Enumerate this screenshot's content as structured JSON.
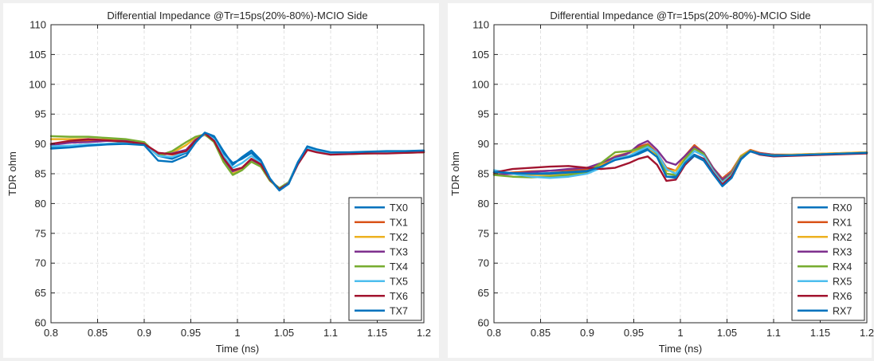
{
  "chart_data": [
    {
      "type": "line",
      "title": "Differential Impedance @Tr=15ps(20%-80%)-MCIO Side",
      "xlabel": "Time (ns)",
      "ylabel": "TDR ohm",
      "xlim": [
        0.8,
        1.2
      ],
      "ylim": [
        60,
        110
      ],
      "xticks": [
        "0.8",
        "0.85",
        "0.9",
        "0.95",
        "1",
        "1.05",
        "1.1",
        "1.15",
        "1.2"
      ],
      "yticks": [
        "60",
        "65",
        "70",
        "75",
        "80",
        "85",
        "90",
        "95",
        "100",
        "105",
        "110"
      ],
      "grid": true,
      "legend_position": "bottom-right",
      "x": [
        0.8,
        0.82,
        0.84,
        0.86,
        0.88,
        0.9,
        0.915,
        0.93,
        0.945,
        0.955,
        0.965,
        0.975,
        0.985,
        0.995,
        1.005,
        1.015,
        1.025,
        1.035,
        1.045,
        1.055,
        1.065,
        1.075,
        1.085,
        1.1,
        1.12,
        1.14,
        1.16,
        1.18,
        1.2
      ],
      "series": [
        {
          "name": "TX0",
          "color": "#0072bd",
          "values": [
            89.5,
            89.5,
            89.8,
            90.0,
            90.2,
            90.2,
            88.0,
            87.5,
            88.5,
            90.5,
            91.8,
            91.0,
            88.5,
            86.8,
            87.5,
            88.5,
            87.0,
            84.0,
            82.2,
            83.5,
            87.0,
            89.5,
            89.0,
            88.5,
            88.5,
            88.6,
            88.6,
            88.7,
            88.8
          ]
        },
        {
          "name": "TX1",
          "color": "#d95319",
          "values": [
            90.0,
            90.3,
            90.5,
            90.5,
            90.4,
            90.0,
            88.5,
            88.2,
            88.8,
            90.5,
            91.8,
            90.5,
            87.5,
            85.5,
            86.0,
            87.5,
            86.5,
            84.0,
            82.4,
            83.5,
            86.8,
            89.2,
            88.8,
            88.3,
            88.4,
            88.5,
            88.5,
            88.6,
            88.6
          ]
        },
        {
          "name": "TX2",
          "color": "#edb120",
          "values": [
            90.8,
            90.8,
            90.8,
            90.7,
            90.5,
            90.0,
            88.0,
            88.5,
            89.8,
            91.0,
            91.5,
            90.5,
            87.0,
            85.0,
            85.8,
            87.2,
            86.3,
            83.8,
            82.5,
            83.5,
            86.8,
            89.0,
            88.8,
            88.3,
            88.4,
            88.4,
            88.5,
            88.6,
            88.6
          ]
        },
        {
          "name": "TX3",
          "color": "#7e2f8e",
          "values": [
            89.8,
            90.2,
            90.3,
            90.5,
            90.5,
            90.2,
            88.2,
            88.4,
            89.0,
            90.7,
            91.6,
            90.4,
            87.5,
            85.4,
            86.0,
            87.4,
            86.5,
            84.0,
            82.4,
            83.5,
            86.8,
            89.0,
            88.7,
            88.3,
            88.3,
            88.5,
            88.5,
            88.6,
            88.7
          ]
        },
        {
          "name": "TX4",
          "color": "#77ac30",
          "values": [
            91.3,
            91.2,
            91.2,
            91.0,
            90.8,
            90.3,
            88.0,
            88.8,
            90.3,
            91.2,
            91.6,
            90.3,
            87.0,
            84.8,
            85.6,
            87.0,
            86.2,
            83.8,
            82.6,
            83.6,
            86.8,
            89.0,
            88.8,
            88.3,
            88.3,
            88.4,
            88.5,
            88.5,
            88.6
          ]
        },
        {
          "name": "TX5",
          "color": "#4dbeee",
          "values": [
            89.6,
            89.7,
            89.9,
            90.0,
            90.1,
            90.0,
            88.0,
            87.8,
            88.7,
            90.5,
            91.7,
            90.8,
            88.0,
            86.0,
            86.8,
            88.0,
            86.8,
            84.0,
            82.3,
            83.5,
            86.9,
            89.3,
            88.9,
            88.4,
            88.5,
            88.6,
            88.6,
            88.7,
            88.8
          ]
        },
        {
          "name": "TX6",
          "color": "#a2142f",
          "values": [
            90.0,
            90.5,
            90.8,
            90.6,
            90.4,
            90.0,
            88.5,
            88.3,
            88.8,
            90.5,
            91.8,
            90.5,
            87.6,
            85.6,
            86.0,
            87.5,
            86.6,
            84.0,
            82.4,
            83.4,
            86.6,
            89.0,
            88.6,
            88.2,
            88.3,
            88.4,
            88.4,
            88.5,
            88.6
          ]
        },
        {
          "name": "TX7",
          "color": "#0072bd",
          "values": [
            89.2,
            89.4,
            89.7,
            89.9,
            90.0,
            89.8,
            87.2,
            87.0,
            88.0,
            90.2,
            91.9,
            91.3,
            88.8,
            86.5,
            87.8,
            88.9,
            87.3,
            84.2,
            82.2,
            83.3,
            86.9,
            89.6,
            89.1,
            88.6,
            88.6,
            88.7,
            88.8,
            88.8,
            88.9
          ]
        }
      ]
    },
    {
      "type": "line",
      "title": "Differential Impedance @Tr=15ps(20%-80%)-MCIO Side",
      "xlabel": "Time (ns)",
      "ylabel": "TDR ohm",
      "xlim": [
        0.8,
        1.2
      ],
      "ylim": [
        60,
        110
      ],
      "xticks": [
        "0.8",
        "0.85",
        "0.9",
        "0.95",
        "1",
        "1.05",
        "1.1",
        "1.15",
        "1.2"
      ],
      "yticks": [
        "60",
        "65",
        "70",
        "75",
        "80",
        "85",
        "90",
        "95",
        "100",
        "105",
        "110"
      ],
      "grid": true,
      "legend_position": "bottom-right",
      "x": [
        0.8,
        0.82,
        0.84,
        0.86,
        0.88,
        0.9,
        0.915,
        0.93,
        0.945,
        0.955,
        0.965,
        0.975,
        0.985,
        0.995,
        1.005,
        1.015,
        1.025,
        1.035,
        1.045,
        1.055,
        1.065,
        1.075,
        1.085,
        1.1,
        1.12,
        1.14,
        1.16,
        1.18,
        1.2
      ],
      "series": [
        {
          "name": "RX0",
          "color": "#0072bd",
          "values": [
            85.0,
            85.0,
            85.0,
            85.1,
            85.3,
            85.5,
            86.8,
            87.8,
            88.0,
            88.5,
            89.3,
            88.0,
            84.5,
            84.5,
            86.5,
            88.0,
            87.2,
            85.0,
            83.0,
            84.5,
            87.5,
            88.8,
            88.3,
            88.0,
            88.1,
            88.2,
            88.3,
            88.4,
            88.5
          ]
        },
        {
          "name": "RX1",
          "color": "#d95319",
          "values": [
            85.0,
            85.2,
            85.4,
            85.5,
            85.6,
            85.8,
            86.5,
            87.5,
            88.5,
            89.5,
            90.0,
            88.5,
            86.0,
            85.5,
            88.0,
            89.8,
            88.5,
            86.0,
            84.2,
            85.5,
            88.0,
            89.0,
            88.5,
            88.2,
            88.2,
            88.3,
            88.4,
            88.5,
            88.6
          ]
        },
        {
          "name": "RX2",
          "color": "#edb120",
          "values": [
            85.2,
            85.0,
            84.8,
            84.8,
            85.0,
            85.3,
            86.5,
            88.0,
            88.5,
            89.0,
            89.5,
            88.0,
            85.5,
            85.5,
            87.8,
            89.5,
            88.5,
            86.0,
            84.0,
            85.3,
            88.0,
            88.9,
            88.4,
            88.2,
            88.2,
            88.3,
            88.4,
            88.5,
            88.6
          ]
        },
        {
          "name": "RX3",
          "color": "#7e2f8e",
          "values": [
            84.8,
            85.0,
            85.3,
            85.5,
            85.8,
            86.0,
            86.8,
            87.8,
            88.5,
            89.8,
            90.5,
            89.0,
            87.0,
            86.5,
            88.0,
            89.5,
            88.5,
            86.0,
            84.0,
            85.2,
            87.8,
            88.8,
            88.4,
            88.2,
            88.1,
            88.2,
            88.3,
            88.4,
            88.5
          ]
        },
        {
          "name": "RX4",
          "color": "#77ac30",
          "values": [
            84.8,
            84.5,
            84.4,
            84.5,
            84.8,
            85.2,
            86.8,
            88.6,
            88.8,
            89.2,
            89.8,
            88.3,
            85.0,
            84.8,
            87.5,
            89.2,
            88.3,
            85.6,
            83.6,
            85.0,
            87.8,
            88.8,
            88.3,
            88.1,
            88.1,
            88.2,
            88.3,
            88.4,
            88.5
          ]
        },
        {
          "name": "RX5",
          "color": "#4dbeee",
          "values": [
            85.6,
            85.0,
            84.5,
            84.3,
            84.5,
            85.0,
            86.0,
            87.5,
            88.0,
            88.8,
            89.5,
            88.5,
            85.8,
            85.0,
            87.0,
            88.8,
            88.0,
            85.5,
            83.5,
            84.8,
            87.6,
            88.7,
            88.3,
            88.0,
            88.1,
            88.2,
            88.3,
            88.4,
            88.5
          ]
        },
        {
          "name": "RX6",
          "color": "#a2142f",
          "values": [
            85.2,
            85.8,
            86.0,
            86.2,
            86.3,
            86.0,
            85.8,
            86.0,
            86.8,
            87.5,
            87.9,
            86.5,
            83.8,
            84.0,
            86.5,
            88.2,
            87.5,
            85.2,
            83.2,
            84.6,
            87.5,
            88.8,
            88.2,
            87.9,
            88.0,
            88.1,
            88.2,
            88.3,
            88.4
          ]
        },
        {
          "name": "RX7",
          "color": "#0072bd",
          "values": [
            85.3,
            85.1,
            85.0,
            85.0,
            85.2,
            85.4,
            86.2,
            87.3,
            87.8,
            88.3,
            89.0,
            87.8,
            84.5,
            84.3,
            86.8,
            88.2,
            87.3,
            85.0,
            82.9,
            84.3,
            87.4,
            88.8,
            88.3,
            88.0,
            88.1,
            88.2,
            88.3,
            88.4,
            88.5
          ]
        }
      ]
    }
  ]
}
